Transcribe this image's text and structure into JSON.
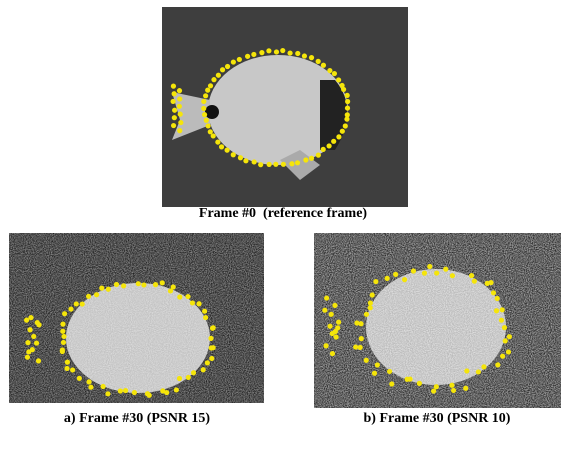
{
  "figure": {
    "panels": [
      {
        "caption": "Frame #0  (reference frame)"
      },
      {
        "caption": "a) Frame #30 (PSNR 15)"
      },
      {
        "caption": "b) Frame #30 (PSNR 10)"
      }
    ]
  }
}
